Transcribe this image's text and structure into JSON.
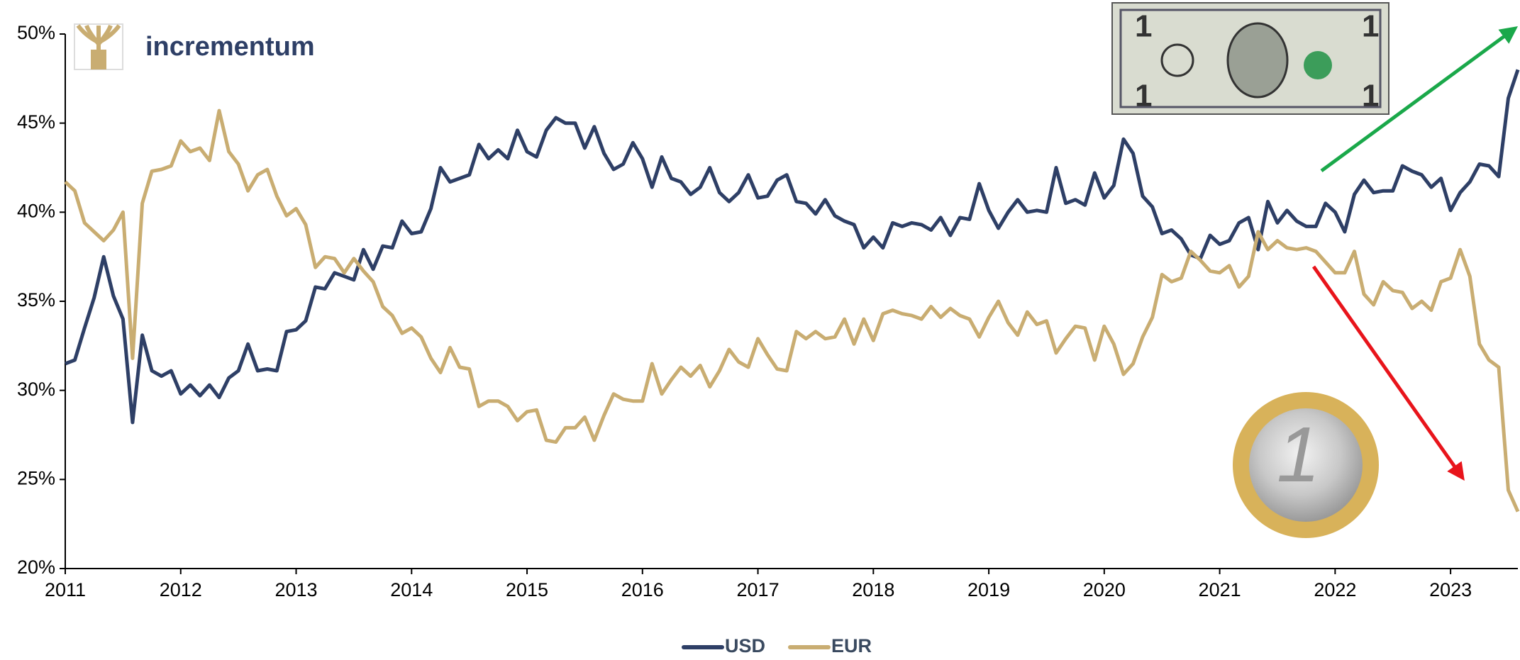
{
  "logo": "incrementum",
  "chart_data": {
    "type": "line",
    "x": [
      2011,
      2011.083,
      2011.167,
      2011.25,
      2011.333,
      2011.417,
      2011.5,
      2011.583,
      2011.667,
      2011.75,
      2011.833,
      2011.917,
      2012,
      2012.083,
      2012.167,
      2012.25,
      2012.333,
      2012.417,
      2012.5,
      2012.583,
      2012.667,
      2012.75,
      2012.833,
      2012.917,
      2013,
      2013.083,
      2013.167,
      2013.25,
      2013.333,
      2013.417,
      2013.5,
      2013.583,
      2013.667,
      2013.75,
      2013.833,
      2013.917,
      2014,
      2014.083,
      2014.167,
      2014.25,
      2014.333,
      2014.417,
      2014.5,
      2014.583,
      2014.667,
      2014.75,
      2014.833,
      2014.917,
      2015,
      2015.083,
      2015.167,
      2015.25,
      2015.333,
      2015.417,
      2015.5,
      2015.583,
      2015.667,
      2015.75,
      2015.833,
      2015.917,
      2016,
      2016.083,
      2016.167,
      2016.25,
      2016.333,
      2016.417,
      2016.5,
      2016.583,
      2016.667,
      2016.75,
      2016.833,
      2016.917,
      2017,
      2017.083,
      2017.167,
      2017.25,
      2017.333,
      2017.417,
      2017.5,
      2017.583,
      2017.667,
      2017.75,
      2017.833,
      2017.917,
      2018,
      2018.083,
      2018.167,
      2018.25,
      2018.333,
      2018.417,
      2018.5,
      2018.583,
      2018.667,
      2018.75,
      2018.833,
      2018.917,
      2019,
      2019.083,
      2019.167,
      2019.25,
      2019.333,
      2019.417,
      2019.5,
      2019.583,
      2019.667,
      2019.75,
      2019.833,
      2019.917,
      2020,
      2020.083,
      2020.167,
      2020.25,
      2020.333,
      2020.417,
      2020.5,
      2020.583,
      2020.667,
      2020.75,
      2020.833,
      2020.917,
      2021,
      2021.083,
      2021.167,
      2021.25,
      2021.333,
      2021.417,
      2021.5,
      2021.583,
      2021.667,
      2021.75,
      2021.833,
      2021.917,
      2022,
      2022.083,
      2022.167,
      2022.25,
      2022.333,
      2022.417,
      2022.5,
      2022.583,
      2022.667,
      2022.75,
      2022.833,
      2022.917,
      2023,
      2023.083,
      2023.167,
      2023.25,
      2023.333,
      2023.417,
      2023.5,
      2023.583
    ],
    "series": [
      {
        "name": "USD",
        "color": "#2e3f66",
        "values": [
          31.5,
          31.7,
          33.5,
          35.2,
          37.5,
          35.3,
          34.0,
          28.2,
          33.1,
          31.1,
          30.8,
          31.1,
          29.8,
          30.3,
          29.7,
          30.3,
          29.6,
          30.7,
          31.1,
          32.6,
          31.1,
          31.2,
          31.1,
          33.3,
          33.4,
          33.9,
          35.8,
          35.7,
          36.6,
          36.4,
          36.2,
          37.9,
          36.8,
          38.1,
          38.0,
          39.5,
          38.8,
          38.9,
          40.2,
          42.5,
          41.7,
          41.9,
          42.1,
          43.8,
          43.0,
          43.5,
          43.0,
          44.6,
          43.4,
          43.1,
          44.6,
          45.3,
          45.0,
          45.0,
          43.6,
          44.8,
          43.3,
          42.4,
          42.7,
          43.9,
          43.0,
          41.4,
          43.1,
          41.9,
          41.7,
          41.0,
          41.4,
          42.5,
          41.1,
          40.6,
          41.1,
          42.1,
          40.8,
          40.9,
          41.8,
          42.1,
          40.6,
          40.5,
          39.9,
          40.7,
          39.8,
          39.5,
          39.3,
          38.0,
          38.6,
          38.0,
          39.4,
          39.2,
          39.4,
          39.3,
          39.0,
          39.7,
          38.7,
          39.7,
          39.6,
          41.6,
          40.1,
          39.1,
          40.0,
          40.7,
          40.0,
          40.1,
          40.0,
          42.5,
          40.5,
          40.7,
          40.4,
          42.2,
          40.8,
          41.5,
          44.1,
          43.3,
          40.9,
          40.3,
          38.8,
          39.0,
          38.5,
          37.6,
          37.4,
          38.7,
          38.2,
          38.4,
          39.4,
          39.7,
          37.9,
          40.6,
          39.4,
          40.1,
          39.5,
          39.2,
          39.2,
          40.5,
          40.0,
          38.9,
          41.0,
          41.8,
          41.1,
          41.2,
          41.2,
          42.6,
          42.3,
          42.1,
          41.4,
          41.9,
          40.1,
          41.1,
          41.7,
          42.7,
          42.6,
          42.0,
          46.4,
          48.0
        ]
      },
      {
        "name": "EUR",
        "color": "#c9ad72",
        "values": [
          41.7,
          41.2,
          39.4,
          38.9,
          38.4,
          39.0,
          40.0,
          31.8,
          40.5,
          42.3,
          42.4,
          42.6,
          44.0,
          43.4,
          43.6,
          42.9,
          45.7,
          43.4,
          42.7,
          41.2,
          42.1,
          42.4,
          40.9,
          39.8,
          40.2,
          39.3,
          36.9,
          37.5,
          37.4,
          36.6,
          37.4,
          36.7,
          36.1,
          34.7,
          34.2,
          33.2,
          33.5,
          33.0,
          31.8,
          31.0,
          32.4,
          31.3,
          31.2,
          29.1,
          29.4,
          29.4,
          29.1,
          28.3,
          28.8,
          28.9,
          27.2,
          27.1,
          27.9,
          27.9,
          28.5,
          27.2,
          28.6,
          29.8,
          29.5,
          29.4,
          29.4,
          31.5,
          29.8,
          30.6,
          31.3,
          30.8,
          31.4,
          30.2,
          31.1,
          32.3,
          31.6,
          31.3,
          32.9,
          32.0,
          31.2,
          31.1,
          33.3,
          32.9,
          33.3,
          32.9,
          33.0,
          34.0,
          32.6,
          34.0,
          32.8,
          34.3,
          34.5,
          34.3,
          34.2,
          34.0,
          34.7,
          34.1,
          34.6,
          34.2,
          34.0,
          33.0,
          34.1,
          35.0,
          33.8,
          33.1,
          34.4,
          33.7,
          33.9,
          32.1,
          32.9,
          33.6,
          33.5,
          31.7,
          33.6,
          32.6,
          30.9,
          31.5,
          33.0,
          34.1,
          36.5,
          36.1,
          36.3,
          37.8,
          37.3,
          36.7,
          36.6,
          37.0,
          35.8,
          36.4,
          38.9,
          37.9,
          38.4,
          38.0,
          37.9,
          38.0,
          37.8,
          37.2,
          36.6,
          36.6,
          37.8,
          35.4,
          34.8,
          36.1,
          35.6,
          35.5,
          34.6,
          35.0,
          34.5,
          36.1,
          36.3,
          37.9,
          36.4,
          32.6,
          31.7,
          31.3,
          24.4,
          23.2
        ]
      }
    ],
    "xlim": [
      2011,
      2023.583
    ],
    "xticks": [
      2011,
      2012,
      2013,
      2014,
      2015,
      2016,
      2017,
      2018,
      2019,
      2020,
      2021,
      2022,
      2023
    ],
    "ylim": [
      20,
      50
    ],
    "yticks": [
      {
        "value": 20,
        "label": "20%"
      },
      {
        "value": 25,
        "label": "25%"
      },
      {
        "value": 30,
        "label": "30%"
      },
      {
        "value": 35,
        "label": "35%"
      },
      {
        "value": 40,
        "label": "40%"
      },
      {
        "value": 45,
        "label": "45%"
      },
      {
        "value": 50,
        "label": "50%"
      }
    ],
    "legend": "bottom"
  }
}
